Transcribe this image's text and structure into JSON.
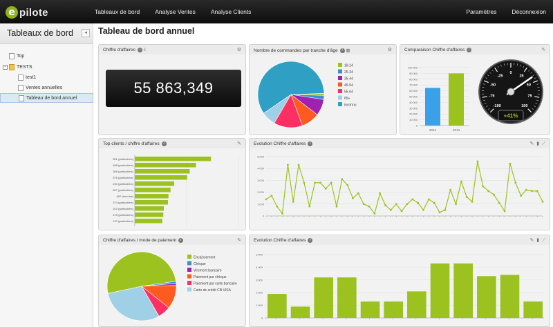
{
  "app": {
    "logo_mark": "e",
    "logo_text": "pilote"
  },
  "topnav": {
    "left": [
      "Tableaux de bord",
      "Analyse Ventes",
      "Analyse Clients"
    ],
    "right": [
      "Paramètres",
      "Déconnexion"
    ]
  },
  "sidebar": {
    "title": "Tableaux de bord",
    "collapse_label": "◂",
    "items": [
      {
        "label": "Top",
        "icon": "document-icon",
        "level": 0
      },
      {
        "label": "TESTS",
        "icon": "folder-icon",
        "level": 0,
        "toggle": "-"
      },
      {
        "label": "test1",
        "icon": "document-icon",
        "level": 1
      },
      {
        "label": "Ventes annuelles",
        "icon": "document-icon",
        "level": 1
      },
      {
        "label": "Tableau de bord annuel",
        "icon": "document-icon",
        "level": 1,
        "selected": true
      }
    ]
  },
  "page": {
    "title": "Tableau de bord annuel"
  },
  "panels": {
    "kpi": {
      "title": "Chiffre d'affaires",
      "suffix": "€",
      "value": "55 863,349"
    },
    "age_pie": {
      "title": "Nombre de commandes par tranche d'âge"
    },
    "compare": {
      "title": "Comparaison Chiffre d'affaires",
      "gauge_badge": "+41%"
    },
    "top_clients": {
      "title": "Top clients / chiffre d'affaires"
    },
    "evolution_line": {
      "title": "Evolution Chiffre d'affaires"
    },
    "payment_pie": {
      "title": "Chiffre d'affaires / mode de paiement"
    },
    "evolution_bar": {
      "title": "Evolution Chiffre d'affaires"
    }
  },
  "chart_data": [
    {
      "id": "age_pie",
      "type": "pie",
      "categories": [
        "18-24",
        "25-34",
        "35-44",
        "45-54",
        "55-64",
        "65+",
        "inconnu"
      ],
      "values": [
        1,
        2,
        8,
        9,
        14,
        7,
        59
      ],
      "colors": [
        "#9cc21f",
        "#3a8fd1",
        "#a020b0",
        "#ff5a1f",
        "#ff2e63",
        "#9fd0e6",
        "#2f9fc4"
      ]
    },
    {
      "id": "compare_bar",
      "type": "bar",
      "categories": [
        "2012",
        "2013"
      ],
      "values": [
        65000,
        90000
      ],
      "ylim": [
        0,
        100000
      ],
      "yticks": [
        0,
        10000,
        20000,
        30000,
        40000,
        50000,
        60000,
        70000,
        80000,
        90000,
        100000
      ],
      "colors": [
        "#3aa0e8",
        "#9cc21f"
      ]
    },
    {
      "id": "compare_gauge",
      "type": "gauge",
      "value": 41,
      "range": [
        -100,
        100
      ],
      "ticks": [
        -100,
        -75,
        -50,
        -25,
        0,
        25,
        50,
        75,
        100
      ]
    },
    {
      "id": "top_clients",
      "type": "bar",
      "orientation": "horizontal",
      "categories": [
        "501 (particuliers)",
        "488 (particuliers)",
        "388 (particuliers)",
        "576 (particuliers)",
        "233 (particuliers)",
        "507 (particuliers)",
        "487 (fourniss)",
        "374 (particuliers)",
        "102 (particuliers)",
        "475 (particuliers)",
        "147 (particuliers)"
      ],
      "values": [
        1470,
        1180,
        1060,
        1010,
        760,
        690,
        650,
        640,
        560,
        550,
        530
      ],
      "xlim": [
        0,
        2000
      ],
      "xticks": [
        0,
        1000,
        2000
      ],
      "color": "#9cc21f"
    },
    {
      "id": "evolution_line",
      "type": "line",
      "values": [
        1400,
        1700,
        800,
        200,
        4300,
        1200,
        4300,
        2800,
        800,
        2800,
        2800,
        2300,
        2800,
        800,
        3100,
        2600,
        1500,
        1900,
        1000,
        800,
        200,
        1900,
        900,
        500,
        1000,
        400,
        1000,
        1400,
        1100,
        500,
        1400,
        1100,
        300,
        500,
        2200,
        1000,
        2900,
        1600,
        1200,
        4600,
        2500,
        2100,
        1800,
        1100,
        400,
        4400,
        2800,
        1700,
        2200,
        2100,
        2100,
        1200
      ],
      "ylim": [
        0,
        5000
      ],
      "yticks": [
        0,
        1000,
        2000,
        3000,
        4000,
        5000
      ],
      "color": "#9cc21f"
    },
    {
      "id": "payment_pie",
      "type": "pie",
      "categories": [
        "Encaissement",
        "Chèque",
        "Virement bancaire",
        "Paiement par chèque",
        "Paiement par carte bancaire",
        "Carte de crédit CB VISA"
      ],
      "values": [
        51,
        1,
        1,
        11,
        6,
        30
      ],
      "colors": [
        "#9cc21f",
        "#3a8fd1",
        "#a020b0",
        "#ff5a1f",
        "#ff2e63",
        "#9fd0e6"
      ]
    },
    {
      "id": "evolution_bar",
      "type": "bar",
      "values": [
        1900,
        900,
        3200,
        3200,
        1300,
        1300,
        2100,
        4300,
        4300,
        3300,
        3400,
        1300
      ],
      "ylim": [
        0,
        5000
      ],
      "yticks": [
        0,
        1000,
        2000,
        3000,
        4000,
        5000
      ],
      "color": "#9cc21f"
    }
  ]
}
